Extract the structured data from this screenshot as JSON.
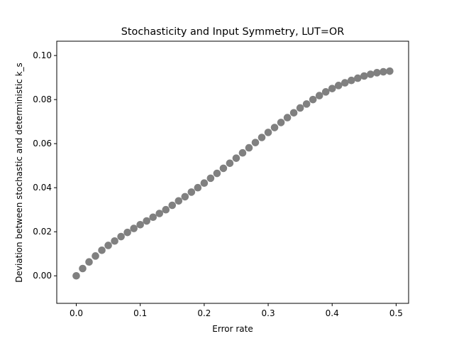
{
  "chart_data": {
    "type": "scatter",
    "title": "Stochasticity and Input Symmetry, LUT=OR",
    "xlabel": "Error rate",
    "ylabel": "Deviation between stochastic and deterministic k_s",
    "xlim": [
      -0.0305,
      0.5195
    ],
    "ylim": [
      -0.0125,
      0.1065
    ],
    "xticks": [
      0.0,
      0.1,
      0.2,
      0.3,
      0.4,
      0.5
    ],
    "xtick_labels": [
      "0.0",
      "0.1",
      "0.2",
      "0.3",
      "0.4",
      "0.5"
    ],
    "yticks": [
      0.0,
      0.02,
      0.04,
      0.06,
      0.08,
      0.1
    ],
    "ytick_labels": [
      "0.00",
      "0.02",
      "0.04",
      "0.06",
      "0.08",
      "0.10"
    ],
    "grid": false,
    "marker_color": "#808080",
    "x": [
      0.0,
      0.01,
      0.02,
      0.03,
      0.04,
      0.05,
      0.06,
      0.07,
      0.08,
      0.09,
      0.1,
      0.11,
      0.12,
      0.13,
      0.14,
      0.15,
      0.16,
      0.17,
      0.18,
      0.19,
      0.2,
      0.21,
      0.22,
      0.23,
      0.24,
      0.25,
      0.26,
      0.27,
      0.28,
      0.29,
      0.3,
      0.31,
      0.32,
      0.33,
      0.34,
      0.35,
      0.36,
      0.37,
      0.38,
      0.39,
      0.4,
      0.41,
      0.42,
      0.43,
      0.44,
      0.45,
      0.46,
      0.47,
      0.48,
      0.49
    ],
    "y": [
      0.0,
      0.0033,
      0.0063,
      0.009,
      0.0116,
      0.0138,
      0.0158,
      0.0178,
      0.0197,
      0.0215,
      0.0232,
      0.0249,
      0.0266,
      0.0283,
      0.03,
      0.032,
      0.034,
      0.0359,
      0.038,
      0.04,
      0.0421,
      0.0443,
      0.0465,
      0.0488,
      0.0511,
      0.0534,
      0.0558,
      0.0581,
      0.0605,
      0.0628,
      0.0651,
      0.0673,
      0.0696,
      0.0718,
      0.074,
      0.0762,
      0.078,
      0.08,
      0.0818,
      0.0835,
      0.085,
      0.0864,
      0.0876,
      0.0887,
      0.0897,
      0.0907,
      0.0915,
      0.0922,
      0.0926,
      0.0929
    ]
  }
}
